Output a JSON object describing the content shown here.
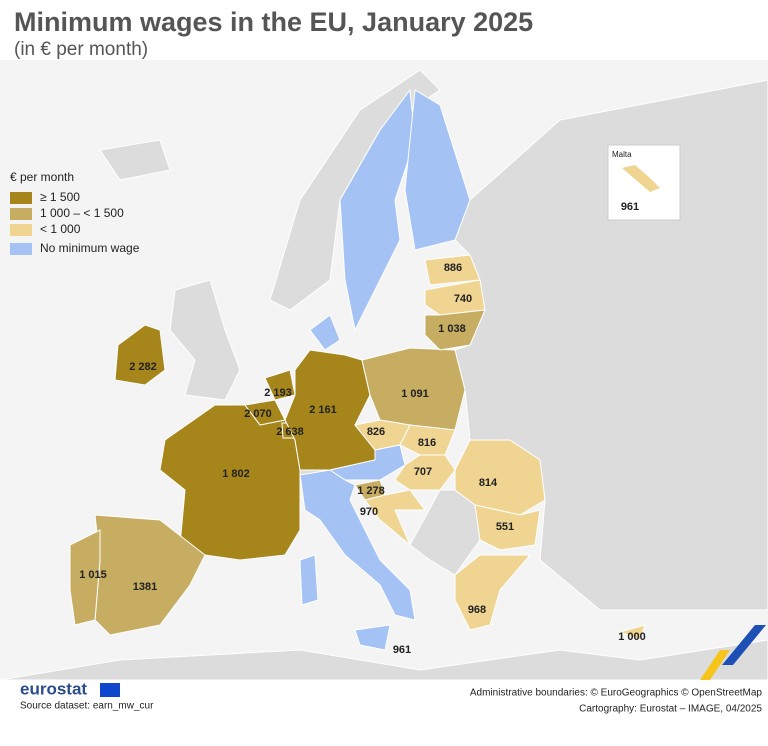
{
  "header": {
    "title": "Minimum wages in the EU, January 2025",
    "subtitle": "(in € per month)"
  },
  "legend": {
    "title": "€ per month",
    "items": [
      {
        "label": "≥ 1 500",
        "color": "#a6861b"
      },
      {
        "label": "1 000 – < 1 500",
        "color": "#c6ad62"
      },
      {
        "label": "< 1 000",
        "color": "#f0d592"
      },
      {
        "label": "No minimum wage",
        "color": "#a4c2f4"
      }
    ]
  },
  "map_labels": [
    "2 282",
    "2 193",
    "2 070",
    "2 638",
    "2 161",
    "1 802",
    "1381",
    "1 015",
    "1 091",
    "826",
    "816",
    "707",
    "814",
    "551",
    "1 278",
    "970",
    "968",
    "1 038",
    "740",
    "886",
    "961",
    "1 000"
  ],
  "inset": {
    "title": "Malta",
    "label": "961"
  },
  "footer": {
    "logo": "eurostat",
    "source": "Source dataset: earn_mw_cur",
    "credits": [
      "Administrative boundaries: © EuroGeographics © OpenStreetMap",
      "Cartography: Eurostat – IMAGE, 04/2025"
    ]
  }
}
